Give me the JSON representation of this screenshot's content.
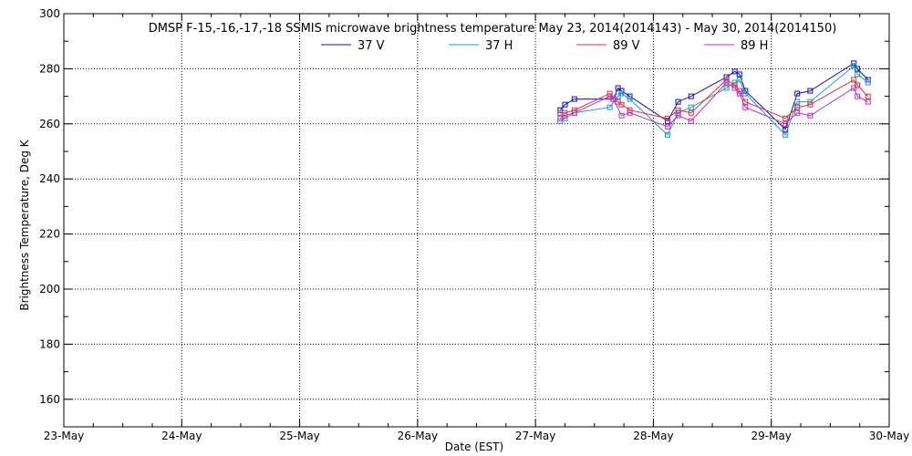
{
  "chart_data": {
    "type": "line",
    "title": "DMSP F-15,-16,-17,-18 SSMIS microwave brightness temperature May 23, 2014(2014143) - May 30, 2014(2014150)",
    "xlabel": "Date (EST)",
    "ylabel": "Brightness Temperature, Deg K",
    "xlim": [
      0,
      7
    ],
    "ylim": [
      150,
      300
    ],
    "x_ticks": [
      "23-May",
      "24-May",
      "25-May",
      "26-May",
      "27-May",
      "28-May",
      "29-May",
      "30-May"
    ],
    "y_ticks": [
      160,
      180,
      200,
      220,
      240,
      260,
      280,
      300
    ],
    "grid": true,
    "legend_position": "top",
    "series": [
      {
        "name": "37 V",
        "color": "#1010c8",
        "x": [
          4.21,
          4.25,
          4.33,
          4.66,
          4.7,
          4.73,
          4.8,
          5.12,
          5.21,
          5.32,
          5.62,
          5.69,
          5.73,
          5.78,
          6.12,
          6.22,
          6.33,
          6.7,
          6.73,
          6.82
        ],
        "values": [
          265,
          267,
          269,
          269,
          273,
          272,
          270,
          261,
          268,
          270,
          277,
          279,
          278,
          272,
          258,
          271,
          272,
          282,
          280,
          276
        ]
      },
      {
        "name": "37 H",
        "color": "#1a9bd0",
        "x": [
          4.21,
          4.25,
          4.33,
          4.63,
          4.7,
          4.73,
          4.8,
          5.12,
          5.21,
          5.32,
          5.62,
          5.69,
          5.73,
          5.78,
          6.12,
          6.22,
          6.33,
          6.7,
          6.73,
          6.82
        ],
        "values": [
          261,
          262,
          264,
          266,
          270,
          271,
          269,
          256,
          264,
          266,
          273,
          275,
          276,
          271,
          256,
          268,
          268,
          281,
          278,
          275
        ]
      },
      {
        "name": "89 V",
        "color": "#e0303a",
        "x": [
          4.21,
          4.25,
          4.33,
          4.63,
          4.7,
          4.73,
          4.8,
          5.12,
          5.21,
          5.32,
          5.62,
          5.69,
          5.73,
          5.78,
          6.12,
          6.22,
          6.33,
          6.7,
          6.73,
          6.82
        ],
        "values": [
          264,
          264,
          265,
          271,
          268,
          267,
          265,
          262,
          265,
          264,
          276,
          274,
          272,
          268,
          262,
          266,
          267,
          276,
          274,
          270
        ]
      },
      {
        "name": "89 H",
        "color": "#c030c0",
        "x": [
          4.21,
          4.25,
          4.33,
          4.63,
          4.66,
          4.73,
          4.8,
          5.12,
          5.21,
          5.32,
          5.62,
          5.69,
          5.73,
          5.78,
          6.12,
          6.22,
          6.33,
          6.7,
          6.73,
          6.82
        ],
        "values": [
          262,
          263,
          264,
          270,
          269,
          263,
          264,
          259,
          263,
          261,
          275,
          273,
          271,
          266,
          260,
          264,
          263,
          273,
          270,
          268
        ]
      }
    ]
  }
}
